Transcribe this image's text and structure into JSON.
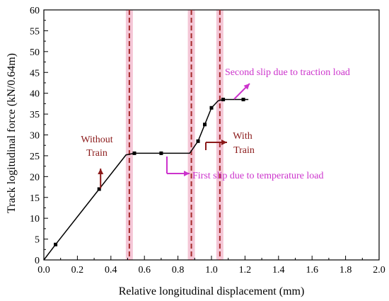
{
  "chart_data": {
    "type": "line",
    "xlabel": "Relative longitudinal displacement (mm)",
    "ylabel": "Track logitudinal force (kN/0.64m)",
    "xlim": [
      0.0,
      2.0
    ],
    "ylim": [
      0,
      60
    ],
    "xticks": [
      "0.0",
      "0.2",
      "0.4",
      "0.6",
      "0.8",
      "1.0",
      "1.2",
      "1.4",
      "1.6",
      "1.8",
      "2.0"
    ],
    "yticks": [
      "0",
      "5",
      "10",
      "15",
      "20",
      "25",
      "30",
      "35",
      "40",
      "45",
      "50",
      "55",
      "60"
    ],
    "series": [
      {
        "color": "#000000",
        "x": [
          0.0,
          0.07,
          0.33,
          0.49,
          0.54,
          0.7,
          0.87,
          0.92,
          0.96,
          1.0,
          1.04,
          1.07,
          1.19,
          1.22
        ],
        "y": [
          0.0,
          3.7,
          17.0,
          25.2,
          25.6,
          25.6,
          25.6,
          28.5,
          32.5,
          36.5,
          38.2,
          38.5,
          38.5,
          38.5
        ],
        "markers_x": [
          0.07,
          0.33,
          0.54,
          0.7,
          0.92,
          0.96,
          1.0,
          1.07,
          1.19
        ],
        "markers_y": [
          3.7,
          17.0,
          25.6,
          25.6,
          28.5,
          32.5,
          36.5,
          38.5,
          38.5
        ]
      }
    ],
    "vlines": [
      {
        "x": 0.51,
        "color": "#a52a2a",
        "band_color": "#f4c6d6"
      },
      {
        "x": 0.88,
        "color": "#a52a2a",
        "band_color": "#f4c6d6"
      },
      {
        "x": 1.05,
        "color": "#a52a2a",
        "band_color": "#f4c6d6"
      }
    ],
    "annotations": [
      {
        "id": "without_train",
        "lines": [
          "Without",
          "Train"
        ],
        "color": "#8b1a1a"
      },
      {
        "id": "with_train",
        "lines": [
          "With",
          "Train"
        ],
        "color": "#8b1a1a"
      },
      {
        "id": "first_slip",
        "lines": [
          "First slip due to temperature load"
        ],
        "color": "#cc33cc"
      },
      {
        "id": "second_slip",
        "lines": [
          "Second slip due to traction load"
        ],
        "color": "#cc33cc"
      }
    ]
  }
}
